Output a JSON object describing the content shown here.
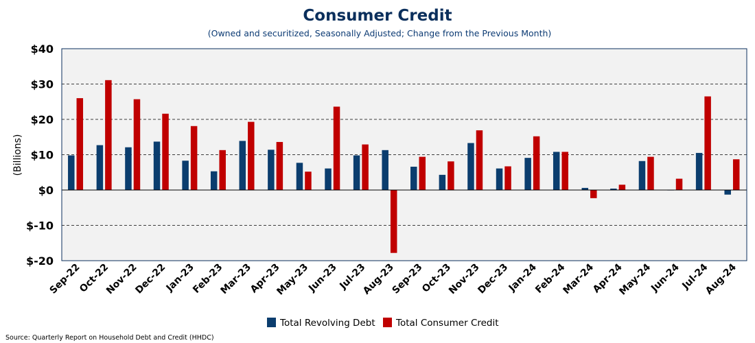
{
  "chart_data": {
    "type": "bar",
    "title": "Consumer Credit",
    "subtitle": "(Owned and securitized, Seasonally Adjusted; Change from the Previous Month)",
    "xlabel": "",
    "ylabel": "(Billions)",
    "ylim": [
      -20,
      40
    ],
    "yticks": [
      40,
      30,
      20,
      10,
      0,
      -10,
      -20
    ],
    "ytick_labels": [
      "$40",
      "$30",
      "$20",
      "$10",
      "$0",
      "$-10",
      "$-20"
    ],
    "grid": "horizontal dashed",
    "legend_position": "bottom-center",
    "categories": [
      "Sep-22",
      "Oct-22",
      "Nov-22",
      "Dec-22",
      "Jan-23",
      "Feb-23",
      "Mar-23",
      "Apr-23",
      "May-23",
      "Jun-23",
      "Jul-23",
      "Aug-23",
      "Sep-23",
      "Oct-23",
      "Nov-23",
      "Dec-23",
      "Jan-24",
      "Feb-24",
      "Mar-24",
      "Apr-24",
      "May-24",
      "Jun-24",
      "Jul-24",
      "Aug-24"
    ],
    "series": [
      {
        "name": "Total Revolving Debt",
        "color": "#0b3d6e",
        "values": [
          9.8,
          12.7,
          12.1,
          13.7,
          8.3,
          5.3,
          13.9,
          11.4,
          7.7,
          6.1,
          9.8,
          11.3,
          6.6,
          4.3,
          13.3,
          6.1,
          9.1,
          10.8,
          0.6,
          0.4,
          8.2,
          -0.1,
          10.5,
          -1.3
        ]
      },
      {
        "name": "Total Consumer Credit",
        "color": "#c00000",
        "values": [
          26.0,
          31.1,
          25.7,
          21.6,
          18.1,
          11.3,
          19.3,
          13.6,
          5.2,
          23.6,
          12.9,
          -17.8,
          9.4,
          8.1,
          16.9,
          6.7,
          15.2,
          10.8,
          -2.3,
          1.5,
          9.4,
          3.2,
          26.5,
          8.7
        ]
      }
    ],
    "source": "Source: Quarterly Report on Household Debt and Credit (HHDC)"
  },
  "colors": {
    "plot_background": "#f2f2f2",
    "plot_border": "#0b2f5c",
    "grid": "#000000",
    "title": "#0b2f5c"
  }
}
